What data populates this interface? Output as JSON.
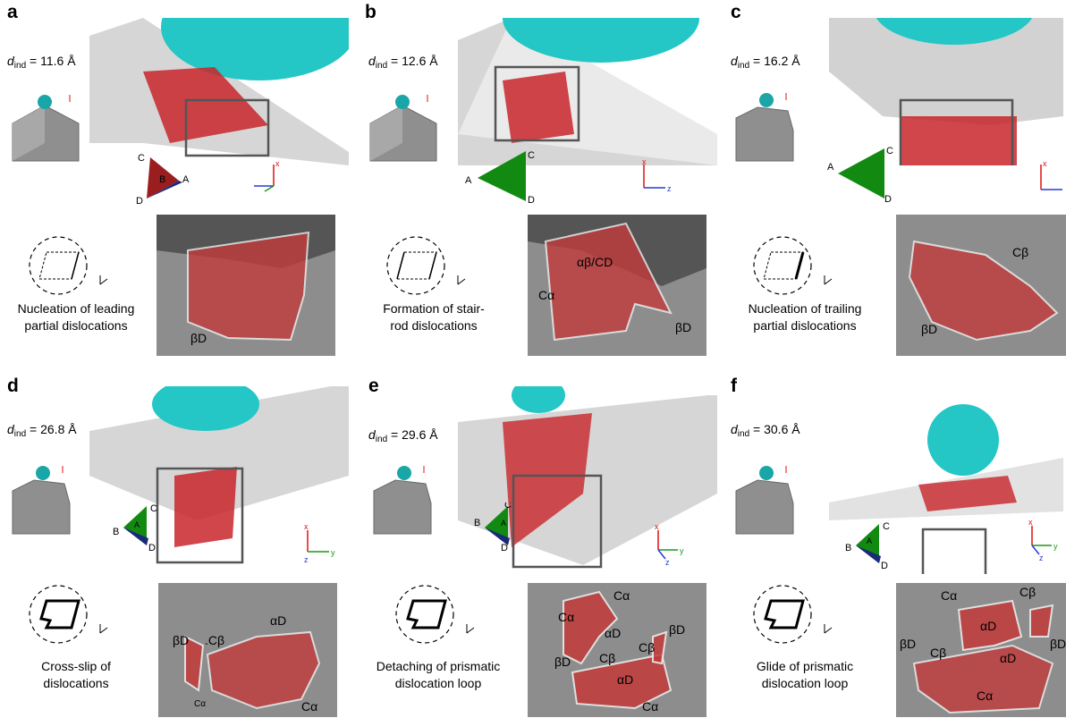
{
  "panels": [
    {
      "letter": "a",
      "dind_value": "= 11.6 Å",
      "caption": "Nucleation of leading\npartial dislocations",
      "tri_labels": [
        "C",
        "B",
        "A",
        "D"
      ],
      "detail_labels": [
        "βD"
      ]
    },
    {
      "letter": "b",
      "dind_value": "= 12.6 Å",
      "caption": "Formation of stair-\nrod dislocations",
      "tri_labels": [
        "C",
        "A",
        "D"
      ],
      "detail_labels": [
        "αβ/CD",
        "Cα",
        "βD"
      ]
    },
    {
      "letter": "c",
      "dind_value": "= 16.2 Å",
      "caption": "Nucleation of trailing\npartial dislocations",
      "tri_labels": [
        "C",
        "A",
        "D"
      ],
      "detail_labels": [
        "Cβ",
        "βD"
      ]
    },
    {
      "letter": "d",
      "dind_value": "= 26.8 Å",
      "caption": "Cross-slip of\ndislocations",
      "tri_labels": [
        "C",
        "A",
        "B",
        "D"
      ],
      "detail_labels": [
        "βD",
        ".Cβ",
        "αD",
        "Cα",
        "Cα"
      ]
    },
    {
      "letter": "e",
      "dind_value": "= 29.6 Å",
      "caption": "Detaching of prismatic\ndislocation loop",
      "tri_labels": [
        "C",
        "A",
        "B",
        "D"
      ],
      "detail_labels": [
        "Cα",
        "Cα",
        "αD",
        "βD",
        "Cβ",
        "βD",
        "Cβ",
        "αD",
        "Cα"
      ]
    },
    {
      "letter": "f",
      "dind_value": "= 30.6 Å",
      "caption": "Glide of prismatic\ndislocation loop",
      "tri_labels": [
        "C",
        "A",
        "B",
        "D"
      ],
      "detail_labels": [
        "Cα",
        "Cβ",
        "αD",
        "βD",
        "Cβ",
        "βD",
        "αD",
        "Cα"
      ]
    }
  ],
  "dind_symbol": "d",
  "dind_sub": "ind",
  "axis_labels": {
    "x": "x",
    "y": "y",
    "z": "z"
  },
  "colors": {
    "teal": "#24c6c6",
    "red": "#c8262a",
    "green": "#128a12",
    "navy": "#1a2a7a",
    "gray": "#9a9a9a"
  }
}
